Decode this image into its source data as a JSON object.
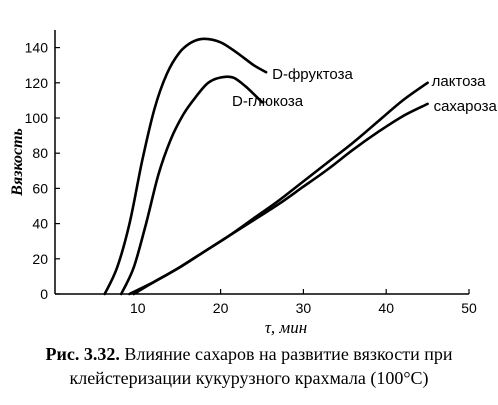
{
  "chart_data": {
    "type": "line",
    "title": "",
    "xlabel": "τ, мин",
    "ylabel": "Вязкость",
    "xlim": [
      0,
      50
    ],
    "ylim": [
      0,
      150
    ],
    "x_ticks": [
      10,
      20,
      30,
      40,
      50
    ],
    "y_ticks": [
      0,
      20,
      40,
      60,
      80,
      100,
      120,
      140
    ],
    "grid": false,
    "series": [
      {
        "name": "D-фруктоза",
        "points": [
          [
            6.0,
            0
          ],
          [
            7.5,
            15
          ],
          [
            9.0,
            40
          ],
          [
            10.5,
            75
          ],
          [
            12.0,
            105
          ],
          [
            13.5,
            125
          ],
          [
            15.0,
            137
          ],
          [
            16.5,
            143
          ],
          [
            18.0,
            145
          ],
          [
            20.0,
            143
          ],
          [
            22.0,
            137
          ],
          [
            24.0,
            130
          ],
          [
            25.5,
            126
          ]
        ]
      },
      {
        "name": "D-глюкоза",
        "points": [
          [
            8.0,
            0
          ],
          [
            9.5,
            15
          ],
          [
            11.0,
            40
          ],
          [
            12.5,
            68
          ],
          [
            14.0,
            88
          ],
          [
            15.5,
            102
          ],
          [
            17.0,
            112
          ],
          [
            18.5,
            120
          ],
          [
            20.0,
            123
          ],
          [
            21.5,
            123
          ],
          [
            23.0,
            118
          ],
          [
            25.0,
            109
          ]
        ]
      },
      {
        "name": "лактоза",
        "points": [
          [
            9.0,
            0
          ],
          [
            12.0,
            7
          ],
          [
            15.0,
            15
          ],
          [
            18.0,
            24
          ],
          [
            21.0,
            33
          ],
          [
            24.0,
            43
          ],
          [
            27.0,
            53
          ],
          [
            30.0,
            64
          ],
          [
            33.0,
            75
          ],
          [
            36.0,
            86
          ],
          [
            39.0,
            98
          ],
          [
            42.0,
            110
          ],
          [
            45.0,
            120
          ]
        ]
      },
      {
        "name": "сахароза",
        "points": [
          [
            9.5,
            0
          ],
          [
            12.0,
            7
          ],
          [
            15.0,
            15
          ],
          [
            18.0,
            24
          ],
          [
            21.0,
            33
          ],
          [
            24.0,
            42
          ],
          [
            27.0,
            51
          ],
          [
            30.0,
            61
          ],
          [
            33.0,
            71
          ],
          [
            36.0,
            82
          ],
          [
            39.0,
            92
          ],
          [
            42.0,
            101
          ],
          [
            45.0,
            108
          ]
        ]
      }
    ]
  },
  "caption": {
    "lead": "Рис. 3.32.",
    "line1_rest": "Влияние сахаров на развитие вязкости при",
    "line2": "клейстеризации кукурузного крахмала (100°С)"
  }
}
